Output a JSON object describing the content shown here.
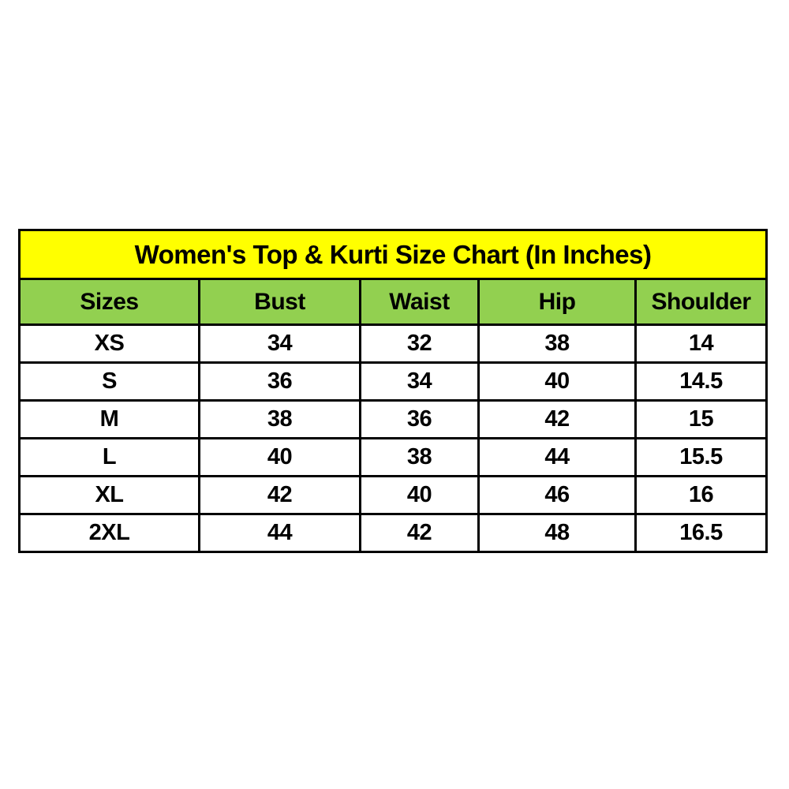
{
  "title": "Women's Top & Kurti Size Chart (In Inches)",
  "colors": {
    "title_bg": "#FFFF00",
    "header_bg": "#92D050",
    "border": "#000000",
    "text": "#000000",
    "page_bg": "#FFFFFF"
  },
  "chart_data": {
    "type": "table",
    "title": "Women's Top & Kurti Size Chart (In Inches)",
    "columns": [
      "Sizes",
      "Bust",
      "Waist",
      "Hip",
      "Shoulder"
    ],
    "rows": [
      [
        "XS",
        "34",
        "32",
        "38",
        "14"
      ],
      [
        "S",
        "36",
        "34",
        "40",
        "14.5"
      ],
      [
        "M",
        "38",
        "36",
        "42",
        "15"
      ],
      [
        "L",
        "40",
        "38",
        "44",
        "15.5"
      ],
      [
        "XL",
        "42",
        "40",
        "46",
        "16"
      ],
      [
        "2XL",
        "44",
        "42",
        "48",
        "16.5"
      ]
    ],
    "layout": {
      "legend": "none",
      "grid": "full-borders",
      "units": "inches"
    }
  }
}
